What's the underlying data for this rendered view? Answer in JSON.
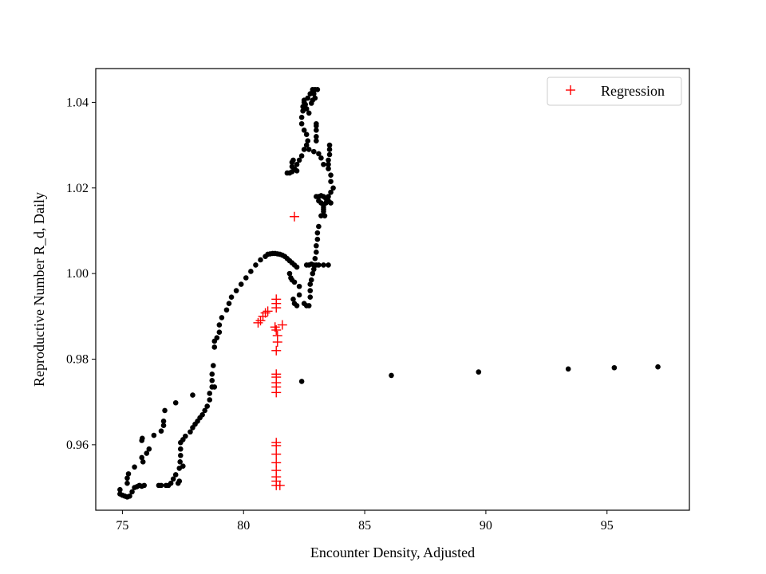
{
  "chart_data": {
    "type": "scatter",
    "xlabel": "Encounter Density, Adjusted",
    "ylabel": "Reproductive Number R_d, Daily",
    "xlim": [
      73.9,
      98.4
    ],
    "ylim": [
      0.9447,
      1.0479
    ],
    "xticks": [
      75,
      80,
      85,
      90,
      95
    ],
    "xtick_labels": [
      "75",
      "80",
      "85",
      "90",
      "95"
    ],
    "yticks": [
      0.96,
      0.98,
      1.0,
      1.02,
      1.04
    ],
    "ytick_labels": [
      "0.96",
      "0.98",
      "1.00",
      "1.02",
      "1.04"
    ],
    "grid": false,
    "legend": {
      "position": "top-right",
      "entries": [
        "Regression"
      ]
    },
    "series": [
      {
        "marker": "dot",
        "color": "#000000",
        "points": [
          [
            74.9,
            0.9495
          ],
          [
            74.9,
            0.9485
          ],
          [
            75.0,
            0.9482
          ],
          [
            75.1,
            0.948
          ],
          [
            75.2,
            0.9478
          ],
          [
            75.3,
            0.948
          ],
          [
            75.2,
            0.951
          ],
          [
            75.2,
            0.9522
          ],
          [
            75.25,
            0.9532
          ],
          [
            75.4,
            0.949
          ],
          [
            75.5,
            0.95
          ],
          [
            75.5,
            0.9548
          ],
          [
            75.6,
            0.9502
          ],
          [
            75.7,
            0.9505
          ],
          [
            75.8,
            0.9503
          ],
          [
            75.85,
            0.956
          ],
          [
            75.8,
            0.957
          ],
          [
            75.8,
            0.961
          ],
          [
            75.82,
            0.9615
          ],
          [
            75.9,
            0.9505
          ],
          [
            76.0,
            0.958
          ],
          [
            76.1,
            0.959
          ],
          [
            76.3,
            0.9622
          ],
          [
            76.5,
            0.9505
          ],
          [
            76.6,
            0.9632
          ],
          [
            76.6,
            0.9505
          ],
          [
            76.7,
            0.9645
          ],
          [
            76.7,
            0.9655
          ],
          [
            76.75,
            0.968
          ],
          [
            76.8,
            0.9505
          ],
          [
            76.9,
            0.9505
          ],
          [
            77.0,
            0.951
          ],
          [
            77.1,
            0.952
          ],
          [
            77.2,
            0.953
          ],
          [
            77.2,
            0.9698
          ],
          [
            77.3,
            0.951
          ],
          [
            77.35,
            0.9515
          ],
          [
            77.35,
            0.9545
          ],
          [
            77.38,
            0.956
          ],
          [
            77.4,
            0.9575
          ],
          [
            77.4,
            0.959
          ],
          [
            77.4,
            0.9605
          ],
          [
            77.5,
            0.955
          ],
          [
            77.5,
            0.9612
          ],
          [
            77.6,
            0.962
          ],
          [
            77.9,
            0.9716
          ],
          [
            77.8,
            0.963
          ],
          [
            77.9,
            0.964
          ],
          [
            78.0,
            0.9648
          ],
          [
            78.1,
            0.9655
          ],
          [
            78.2,
            0.9663
          ],
          [
            78.3,
            0.967
          ],
          [
            78.4,
            0.968
          ],
          [
            78.5,
            0.969
          ],
          [
            78.6,
            0.9705
          ],
          [
            78.6,
            0.972
          ],
          [
            78.7,
            0.9735
          ],
          [
            78.7,
            0.975
          ],
          [
            78.7,
            0.9765
          ],
          [
            78.75,
            0.9785
          ],
          [
            78.8,
            0.9828
          ],
          [
            78.8,
            0.9842
          ],
          [
            78.8,
            0.9735
          ],
          [
            78.9,
            0.985
          ],
          [
            79.0,
            0.9863
          ],
          [
            79.0,
            0.988
          ],
          [
            79.1,
            0.9897
          ],
          [
            79.3,
            0.9915
          ],
          [
            79.4,
            0.993
          ],
          [
            79.5,
            0.9945
          ],
          [
            79.7,
            0.996
          ],
          [
            79.9,
            0.9975
          ],
          [
            80.1,
            0.999
          ],
          [
            80.3,
            1.0005
          ],
          [
            80.5,
            1.002
          ],
          [
            80.7,
            1.0032
          ],
          [
            80.9,
            1.004
          ],
          [
            81.0,
            1.0045
          ],
          [
            81.1,
            1.0046
          ],
          [
            81.2,
            1.0047
          ],
          [
            81.3,
            1.0047
          ],
          [
            81.4,
            1.0046
          ],
          [
            81.5,
            1.0045
          ],
          [
            81.6,
            1.0043
          ],
          [
            81.7,
            1.004
          ],
          [
            81.8,
            1.0035
          ],
          [
            81.9,
            1.003
          ],
          [
            82.0,
            1.0025
          ],
          [
            82.1,
            1.002
          ],
          [
            81.9,
            1.0
          ],
          [
            81.95,
            0.999
          ],
          [
            82.0,
            0.9985
          ],
          [
            82.1,
            0.998
          ],
          [
            82.05,
            0.994
          ],
          [
            82.1,
            0.993
          ],
          [
            82.2,
            0.9925
          ],
          [
            82.3,
            0.995
          ],
          [
            82.3,
            0.997
          ],
          [
            82.2,
            1.0015
          ],
          [
            82.5,
            0.993
          ],
          [
            82.6,
            0.9925
          ],
          [
            82.7,
            0.9925
          ],
          [
            82.75,
            0.9945
          ],
          [
            82.75,
            0.996
          ],
          [
            82.75,
            0.9975
          ],
          [
            82.8,
            0.9985
          ],
          [
            82.85,
            1.0
          ],
          [
            82.9,
            1.001
          ],
          [
            82.9,
            1.002
          ],
          [
            82.6,
            1.002
          ],
          [
            82.7,
            1.002
          ],
          [
            82.8,
            1.0022
          ],
          [
            83.0,
            1.002
          ],
          [
            83.1,
            1.002
          ],
          [
            83.3,
            1.002
          ],
          [
            83.5,
            1.002
          ],
          [
            82.95,
            1.0035
          ],
          [
            83.0,
            1.005
          ],
          [
            83.0,
            1.0065
          ],
          [
            83.05,
            1.008
          ],
          [
            83.05,
            1.0095
          ],
          [
            83.1,
            1.011
          ],
          [
            83.2,
            1.0135
          ],
          [
            83.3,
            1.015
          ],
          [
            83.3,
            1.016
          ],
          [
            83.4,
            1.0165
          ],
          [
            83.5,
            1.017
          ],
          [
            83.6,
            1.0165
          ],
          [
            83.5,
            1.018
          ],
          [
            83.6,
            1.019
          ],
          [
            83.7,
            1.02
          ],
          [
            83.6,
            1.0215
          ],
          [
            83.6,
            1.023
          ],
          [
            83.5,
            1.0245
          ],
          [
            83.5,
            1.0255
          ],
          [
            83.5,
            1.0265
          ],
          [
            83.55,
            1.0278
          ],
          [
            83.55,
            1.029
          ],
          [
            83.55,
            1.03
          ],
          [
            83.0,
            1.018
          ],
          [
            83.1,
            1.018
          ],
          [
            83.2,
            1.0182
          ],
          [
            83.3,
            1.018
          ],
          [
            83.4,
            1.0175
          ],
          [
            83.1,
            1.017
          ],
          [
            83.2,
            1.0165
          ],
          [
            83.3,
            1.0155
          ],
          [
            83.3,
            1.0145
          ],
          [
            83.35,
            1.0135
          ],
          [
            83.3,
            1.0255
          ],
          [
            83.2,
            1.027
          ],
          [
            83.1,
            1.028
          ],
          [
            82.9,
            1.0285
          ],
          [
            82.7,
            1.029
          ],
          [
            82.6,
            1.03
          ],
          [
            83.0,
            1.031
          ],
          [
            83.0,
            1.032
          ],
          [
            83.0,
            1.0335
          ],
          [
            83.0,
            1.0345
          ],
          [
            83.0,
            1.035
          ],
          [
            82.95,
            1.041
          ],
          [
            82.9,
            1.042
          ],
          [
            82.85,
            1.043
          ],
          [
            82.75,
            1.042
          ],
          [
            82.65,
            1.041
          ],
          [
            82.55,
            1.0395
          ],
          [
            82.45,
            1.038
          ],
          [
            82.4,
            1.0365
          ],
          [
            82.4,
            1.035
          ],
          [
            82.5,
            1.0335
          ],
          [
            82.6,
            1.0325
          ],
          [
            82.65,
            1.031
          ],
          [
            82.5,
            1.029
          ],
          [
            82.4,
            1.0275
          ],
          [
            82.3,
            1.0265
          ],
          [
            82.2,
            1.0255
          ],
          [
            82.1,
            1.0245
          ],
          [
            82.0,
            1.0238
          ],
          [
            82.0,
            1.025
          ],
          [
            82.0,
            1.026
          ],
          [
            82.05,
            1.0265
          ],
          [
            81.9,
            1.0235
          ],
          [
            81.8,
            1.0235
          ],
          [
            82.2,
            1.024
          ],
          [
            82.85,
            1.0405
          ],
          [
            82.8,
            1.0398
          ],
          [
            82.7,
            1.0375
          ],
          [
            82.6,
            1.0385
          ],
          [
            82.5,
            1.04
          ],
          [
            82.5,
            1.0405
          ],
          [
            82.45,
            1.039
          ],
          [
            82.95,
            1.043
          ],
          [
            83.05,
            1.043
          ],
          [
            82.85,
            1.0425
          ],
          [
            82.4,
            0.9748
          ],
          [
            86.1,
            0.9762
          ],
          [
            89.7,
            0.977
          ],
          [
            93.4,
            0.9777
          ],
          [
            95.3,
            0.978
          ],
          [
            97.1,
            0.9782
          ]
        ]
      },
      {
        "name": "Regression",
        "marker": "plus",
        "color": "#ff0000",
        "points": [
          [
            80.6,
            0.9885
          ],
          [
            80.7,
            0.989
          ],
          [
            80.8,
            0.99
          ],
          [
            80.9,
            0.9908
          ],
          [
            81.0,
            0.9912
          ],
          [
            81.35,
            0.994
          ],
          [
            81.35,
            0.993
          ],
          [
            81.35,
            0.992
          ],
          [
            81.3,
            0.9875
          ],
          [
            81.35,
            0.9868
          ],
          [
            81.4,
            0.9855
          ],
          [
            81.4,
            0.984
          ],
          [
            81.35,
            0.982
          ],
          [
            81.35,
            0.9765
          ],
          [
            81.35,
            0.9758
          ],
          [
            81.35,
            0.9745
          ],
          [
            81.35,
            0.9735
          ],
          [
            81.35,
            0.9722
          ],
          [
            81.35,
            0.9605
          ],
          [
            81.35,
            0.9598
          ],
          [
            81.35,
            0.9578
          ],
          [
            81.35,
            0.9558
          ],
          [
            81.35,
            0.954
          ],
          [
            81.35,
            0.9525
          ],
          [
            81.35,
            0.9515
          ],
          [
            81.35,
            0.9505
          ],
          [
            81.5,
            0.9505
          ],
          [
            81.6,
            0.988
          ],
          [
            82.1,
            1.0133
          ]
        ]
      }
    ]
  }
}
